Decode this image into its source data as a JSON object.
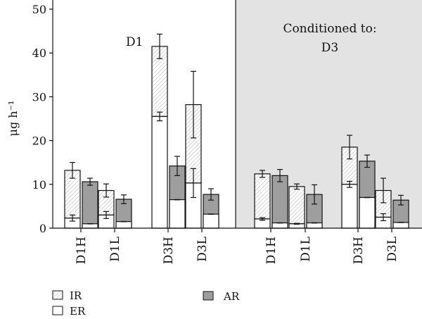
{
  "chart_data": {
    "type": "bar",
    "stacked": true,
    "ylabel": "μg h⁻¹",
    "ylim": [
      0,
      50
    ],
    "yticks": [
      0,
      10,
      20,
      30,
      40,
      50
    ],
    "grid": false,
    "legend": {
      "placement": "bottom-left",
      "entries": [
        {
          "label": "IR",
          "style": "hatched"
        },
        {
          "label": "ER",
          "style": "white"
        },
        {
          "label": "AR",
          "style": "gray"
        }
      ]
    },
    "annotations": {
      "left_label": "D1",
      "right_panel_line1": "Conditioned to:",
      "right_panel_line2": "D3"
    },
    "colors": {
      "ir_fill": "#ffffff",
      "ir_hatch": "#b0b0b0",
      "er_fill": "#ffffff",
      "ar_fill": "#9e9e9e",
      "panel_background": "#e3e3e3",
      "stroke": "#111111"
    },
    "categories": [
      {
        "label": "D1H",
        "panel": "D1",
        "er": 2.3,
        "er_err": 0.7,
        "total": 13.2,
        "total_err": 1.8,
        "ar": 10.6,
        "ar_err": 0.8,
        "ar_inner": 1.0
      },
      {
        "label": "D1L",
        "panel": "D1",
        "er": 3.0,
        "er_err": 0.8,
        "total": 8.6,
        "total_err": 1.5,
        "ar": 6.6,
        "ar_err": 1.0,
        "ar_inner": 1.5
      },
      {
        "label": "D3H",
        "panel": "D1",
        "er": 25.5,
        "er_err": 1.0,
        "total": 41.5,
        "total_err": 2.8,
        "ar": 14.2,
        "ar_err": 2.2,
        "ar_inner": 6.5
      },
      {
        "label": "D3L",
        "panel": "D1",
        "er": 10.3,
        "er_err": 3.3,
        "total": 28.2,
        "total_err": 7.6,
        "ar": 7.7,
        "ar_err": 1.3,
        "ar_inner": 3.2
      },
      {
        "label": "D1H",
        "panel": "D3",
        "er": 2.1,
        "er_err": 0.3,
        "total": 12.4,
        "total_err": 0.8,
        "ar": 12.0,
        "ar_err": 1.4,
        "ar_inner": 1.2
      },
      {
        "label": "D1L",
        "panel": "D3",
        "er": 1.0,
        "er_err": 0.1,
        "total": 9.5,
        "total_err": 0.6,
        "ar": 7.7,
        "ar_err": 2.2,
        "ar_inner": 1.2
      },
      {
        "label": "D3H",
        "panel": "D3",
        "er": 10.0,
        "er_err": 0.7,
        "total": 18.5,
        "total_err": 2.7,
        "ar": 15.3,
        "ar_err": 1.4,
        "ar_inner": 7.0
      },
      {
        "label": "D3L",
        "panel": "D3",
        "er": 2.5,
        "er_err": 0.8,
        "total": 8.6,
        "total_err": 2.8,
        "ar": 6.4,
        "ar_err": 1.1,
        "ar_inner": 1.3
      }
    ]
  }
}
